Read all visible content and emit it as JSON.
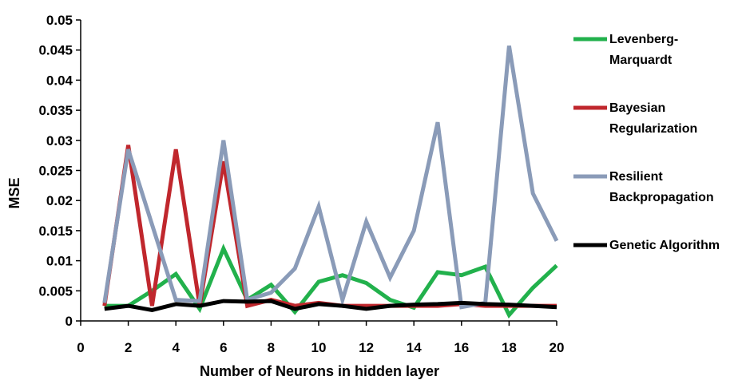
{
  "chart_data": {
    "type": "line",
    "xlabel": "Number of Neurons in hidden layer",
    "ylabel": "MSE",
    "xlim": [
      0,
      20
    ],
    "ylim": [
      0,
      0.05
    ],
    "xticks": [
      "0",
      "2",
      "4",
      "6",
      "8",
      "10",
      "12",
      "14",
      "16",
      "18",
      "20"
    ],
    "yticks": [
      "0",
      "0.005",
      "0.01",
      "0.015",
      "0.02",
      "0.025",
      "0.03",
      "0.035",
      "0.04",
      "0.045",
      "0.05"
    ],
    "x": [
      1,
      2,
      3,
      4,
      5,
      6,
      7,
      8,
      9,
      10,
      11,
      12,
      13,
      14,
      15,
      16,
      17,
      18,
      19,
      20
    ],
    "grid": false,
    "legend_position": "right",
    "series": [
      {
        "name_lines": [
          "Levenberg-",
          "Marquardt"
        ],
        "color": "#22b14c",
        "values": [
          0.0025,
          0.0025,
          0.005,
          0.0078,
          0.002,
          0.012,
          0.0035,
          0.006,
          0.0015,
          0.0065,
          0.0076,
          0.0063,
          0.0035,
          0.0022,
          0.0081,
          0.0076,
          0.009,
          0.001,
          0.0055,
          0.0092
        ]
      },
      {
        "name_lines": [
          "Bayesian",
          "Regularization"
        ],
        "color": "#c0272d",
        "values": [
          0.0025,
          0.0292,
          0.0025,
          0.0285,
          0.0025,
          0.0265,
          0.0025,
          0.0035,
          0.0025,
          0.003,
          0.0025,
          0.0025,
          0.0025,
          0.0025,
          0.0025,
          0.0028,
          0.0025,
          0.0025,
          0.0025,
          0.0025
        ]
      },
      {
        "name_lines": [
          "Resilient",
          "Backpropagation"
        ],
        "color": "#8a9bb8",
        "values": [
          0.003,
          0.0285,
          0.016,
          0.0035,
          0.0033,
          0.03,
          0.0035,
          0.0047,
          0.0087,
          0.019,
          0.0035,
          0.0165,
          0.0072,
          0.015,
          0.033,
          0.0023,
          0.003,
          0.0457,
          0.0212,
          0.0133
        ]
      },
      {
        "name_lines": [
          "Genetic Algorithm"
        ],
        "color": "#000000",
        "values": [
          0.002,
          0.0025,
          0.0018,
          0.0028,
          0.0025,
          0.0033,
          0.0032,
          0.0033,
          0.002,
          0.0028,
          0.0025,
          0.002,
          0.0025,
          0.0027,
          0.0028,
          0.003,
          0.0028,
          0.0027,
          0.0025,
          0.0023
        ]
      }
    ]
  }
}
